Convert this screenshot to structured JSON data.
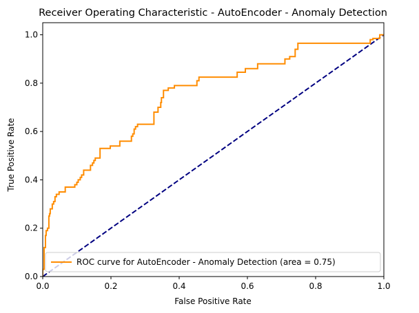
{
  "chart_data": {
    "type": "line",
    "title": "Receiver Operating Characteristic - AutoEncoder - Anomaly Detection",
    "xlabel": "False Positive Rate",
    "ylabel": "True Positive Rate",
    "xlim": [
      0.0,
      1.0
    ],
    "ylim": [
      0.0,
      1.05
    ],
    "xticks": [
      "0.0",
      "0.2",
      "0.4",
      "0.6",
      "0.8",
      "1.0"
    ],
    "yticks": [
      "0.0",
      "0.2",
      "0.4",
      "0.6",
      "0.8",
      "1.0"
    ],
    "grid": false,
    "legend_position": "lower right",
    "series": [
      {
        "name": "ROC curve for AutoEncoder - Anomaly Detection (area = 0.75)",
        "color": "#ff8c00",
        "style": "solid",
        "step": true,
        "x": [
          0.0,
          0.0,
          0.004,
          0.004,
          0.008,
          0.008,
          0.01,
          0.01,
          0.014,
          0.014,
          0.018,
          0.018,
          0.02,
          0.02,
          0.022,
          0.022,
          0.028,
          0.028,
          0.032,
          0.032,
          0.036,
          0.036,
          0.04,
          0.04,
          0.048,
          0.048,
          0.066,
          0.066,
          0.094,
          0.094,
          0.1,
          0.1,
          0.104,
          0.104,
          0.11,
          0.11,
          0.114,
          0.114,
          0.12,
          0.12,
          0.14,
          0.14,
          0.146,
          0.146,
          0.15,
          0.15,
          0.154,
          0.154,
          0.168,
          0.168,
          0.198,
          0.198,
          0.226,
          0.226,
          0.26,
          0.26,
          0.264,
          0.264,
          0.268,
          0.268,
          0.272,
          0.272,
          0.278,
          0.278,
          0.326,
          0.326,
          0.338,
          0.338,
          0.346,
          0.346,
          0.348,
          0.348,
          0.354,
          0.354,
          0.368,
          0.368,
          0.386,
          0.386,
          0.452,
          0.452,
          0.458,
          0.458,
          0.57,
          0.57,
          0.594,
          0.594,
          0.63,
          0.63,
          0.71,
          0.71,
          0.724,
          0.724,
          0.74,
          0.74,
          0.748,
          0.748,
          0.96,
          0.96,
          0.968,
          0.968,
          0.988,
          0.988,
          1.0
        ],
        "y": [
          0.0,
          0.03,
          0.03,
          0.12,
          0.12,
          0.17,
          0.17,
          0.19,
          0.19,
          0.2,
          0.2,
          0.25,
          0.25,
          0.26,
          0.26,
          0.28,
          0.28,
          0.3,
          0.3,
          0.31,
          0.31,
          0.33,
          0.33,
          0.34,
          0.34,
          0.35,
          0.35,
          0.37,
          0.37,
          0.38,
          0.38,
          0.39,
          0.39,
          0.4,
          0.4,
          0.41,
          0.41,
          0.42,
          0.42,
          0.44,
          0.44,
          0.46,
          0.46,
          0.47,
          0.47,
          0.48,
          0.48,
          0.49,
          0.49,
          0.53,
          0.53,
          0.54,
          0.54,
          0.56,
          0.56,
          0.58,
          0.58,
          0.59,
          0.59,
          0.61,
          0.61,
          0.62,
          0.62,
          0.63,
          0.63,
          0.68,
          0.68,
          0.7,
          0.7,
          0.72,
          0.72,
          0.74,
          0.74,
          0.77,
          0.77,
          0.78,
          0.78,
          0.79,
          0.79,
          0.81,
          0.81,
          0.825,
          0.825,
          0.845,
          0.845,
          0.86,
          0.86,
          0.88,
          0.88,
          0.9,
          0.9,
          0.91,
          0.91,
          0.94,
          0.94,
          0.965,
          0.965,
          0.98,
          0.98,
          0.985,
          0.985,
          1.0,
          1.0
        ]
      },
      {
        "name": "",
        "color": "#000080",
        "style": "dashed",
        "x": [
          0.0,
          1.0
        ],
        "y": [
          0.0,
          1.0
        ]
      }
    ]
  }
}
